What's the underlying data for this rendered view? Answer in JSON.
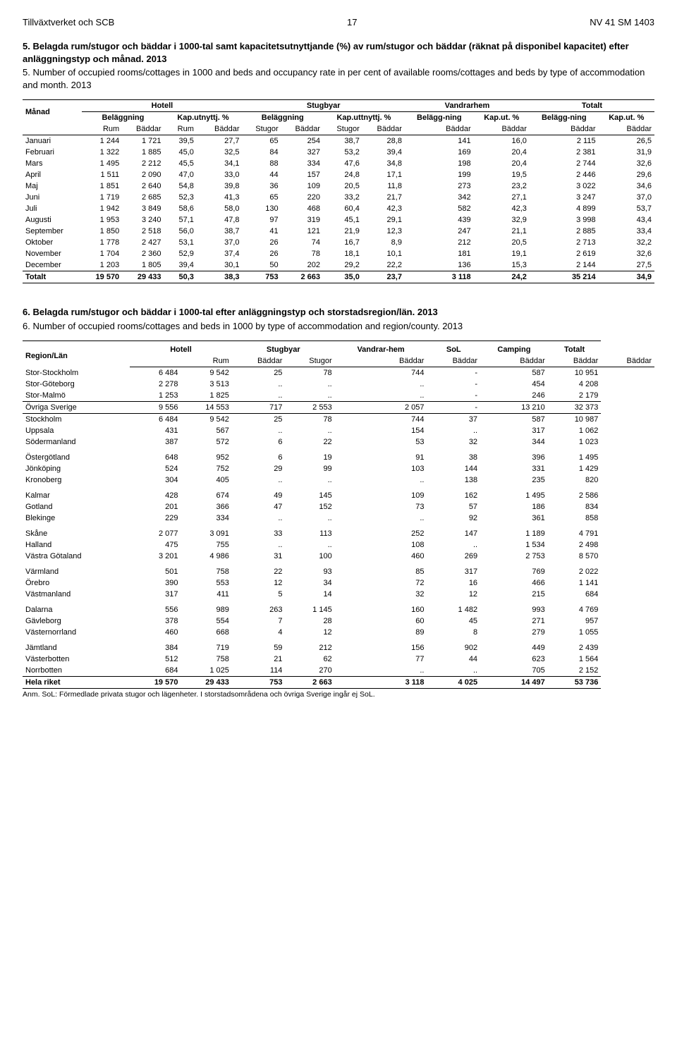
{
  "header": {
    "left": "Tillväxtverket och SCB",
    "page": "17",
    "right": "NV 41 SM 1403"
  },
  "section5": {
    "title": "5. Belagda rum/stugor och bäddar i 1000-tal samt kapacitetsutnyttjande (%) av rum/stugor och bäddar (räknat på disponibel kapacitet) efter anläggningstyp och månad. 2013",
    "sub": "5. Number of occupied rooms/cottages in 1000 and beds and occupancy rate in per cent of available rooms/cottages and beds by type of accommodation and month. 2013",
    "groups": [
      "Månad",
      "Hotell",
      "Stugbyar",
      "Vandrarhem",
      "Totalt"
    ],
    "sub1": [
      "Beläggning",
      "Kap.utnyttj. %",
      "Beläggning",
      "Kap.uttnyttj. %",
      "Belägg-ning",
      "Kap.ut. %",
      "Belägg-ning",
      "Kap.ut. %"
    ],
    "sub2": [
      "",
      "Rum",
      "Bäddar",
      "Rum",
      "Bäddar",
      "Stugor",
      "Bäddar",
      "Stugor",
      "Bäddar",
      "Bäddar",
      "Bäddar",
      "Bäddar",
      "Bäddar"
    ],
    "rows": [
      [
        "Januari",
        "1 244",
        "1 721",
        "39,5",
        "27,7",
        "65",
        "254",
        "38,7",
        "28,8",
        "141",
        "16,0",
        "2 115",
        "26,5"
      ],
      [
        "Februari",
        "1 322",
        "1 885",
        "45,0",
        "32,5",
        "84",
        "327",
        "53,2",
        "39,4",
        "169",
        "20,4",
        "2 381",
        "31,9"
      ],
      [
        "Mars",
        "1 495",
        "2 212",
        "45,5",
        "34,1",
        "88",
        "334",
        "47,6",
        "34,8",
        "198",
        "20,4",
        "2 744",
        "32,6"
      ],
      [
        "April",
        "1 511",
        "2 090",
        "47,0",
        "33,0",
        "44",
        "157",
        "24,8",
        "17,1",
        "199",
        "19,5",
        "2 446",
        "29,6"
      ],
      [
        "Maj",
        "1 851",
        "2 640",
        "54,8",
        "39,8",
        "36",
        "109",
        "20,5",
        "11,8",
        "273",
        "23,2",
        "3 022",
        "34,6"
      ],
      [
        "Juni",
        "1 719",
        "2 685",
        "52,3",
        "41,3",
        "65",
        "220",
        "33,2",
        "21,7",
        "342",
        "27,1",
        "3 247",
        "37,0"
      ],
      [
        "Juli",
        "1 942",
        "3 849",
        "58,6",
        "58,0",
        "130",
        "468",
        "60,4",
        "42,3",
        "582",
        "42,3",
        "4 899",
        "53,7"
      ],
      [
        "Augusti",
        "1 953",
        "3 240",
        "57,1",
        "47,8",
        "97",
        "319",
        "45,1",
        "29,1",
        "439",
        "32,9",
        "3 998",
        "43,4"
      ],
      [
        "September",
        "1 850",
        "2 518",
        "56,0",
        "38,7",
        "41",
        "121",
        "21,9",
        "12,3",
        "247",
        "21,1",
        "2 885",
        "33,4"
      ],
      [
        "Oktober",
        "1 778",
        "2 427",
        "53,1",
        "37,0",
        "26",
        "74",
        "16,7",
        "8,9",
        "212",
        "20,5",
        "2 713",
        "32,2"
      ],
      [
        "November",
        "1 704",
        "2 360",
        "52,9",
        "37,4",
        "26",
        "78",
        "18,1",
        "10,1",
        "181",
        "19,1",
        "2 619",
        "32,6"
      ],
      [
        "December",
        "1 203",
        "1 805",
        "39,4",
        "30,1",
        "50",
        "202",
        "29,2",
        "22,2",
        "136",
        "15,3",
        "2 144",
        "27,5"
      ]
    ],
    "total": [
      "Totalt",
      "19 570",
      "29 433",
      "50,3",
      "38,3",
      "753",
      "2 663",
      "35,0",
      "23,7",
      "3 118",
      "24,2",
      "35 214",
      "34,9"
    ]
  },
  "section6": {
    "title": "6. Belagda rum/stugor och bäddar i 1000-tal efter anläggningstyp och storstadsregion/län. 2013",
    "sub": "6. Number of occupied rooms/cottages and beds in 1000 by type of accommodation and region/county. 2013",
    "groups": [
      "Region/Län",
      "Hotell",
      "Stugbyar",
      "Vandrar-hem",
      "SoL",
      "Camping",
      "Totalt"
    ],
    "sub2": [
      "",
      "Rum",
      "Bäddar",
      "Stugor",
      "Bäddar",
      "Bäddar",
      "Bäddar",
      "Bäddar",
      "Bäddar"
    ],
    "blocks": [
      [
        [
          "Stor-Stockholm",
          "6 484",
          "9 542",
          "25",
          "78",
          "744",
          "-",
          "587",
          "10 951"
        ],
        [
          "Stor-Göteborg",
          "2 278",
          "3 513",
          "..",
          "..",
          "..",
          "-",
          "454",
          "4 208"
        ],
        [
          "Stor-Malmö",
          "1 253",
          "1 825",
          "..",
          "..",
          "..",
          "-",
          "246",
          "2 179"
        ]
      ],
      [
        [
          "Övriga Sverige",
          "9 556",
          "14 553",
          "717",
          "2 553",
          "2 057",
          "-",
          "13 210",
          "32 373"
        ]
      ],
      [
        [
          "Stockholm",
          "6 484",
          "9 542",
          "25",
          "78",
          "744",
          "37",
          "587",
          "10 987"
        ],
        [
          "Uppsala",
          "431",
          "567",
          "..",
          "..",
          "154",
          "..",
          "317",
          "1 062"
        ],
        [
          "Södermanland",
          "387",
          "572",
          "6",
          "22",
          "53",
          "32",
          "344",
          "1 023"
        ]
      ],
      [
        [
          "Östergötland",
          "648",
          "952",
          "6",
          "19",
          "91",
          "38",
          "396",
          "1 495"
        ],
        [
          "Jönköping",
          "524",
          "752",
          "29",
          "99",
          "103",
          "144",
          "331",
          "1 429"
        ],
        [
          "Kronoberg",
          "304",
          "405",
          "..",
          "..",
          "..",
          "138",
          "235",
          "820"
        ]
      ],
      [
        [
          "Kalmar",
          "428",
          "674",
          "49",
          "145",
          "109",
          "162",
          "1 495",
          "2 586"
        ],
        [
          "Gotland",
          "201",
          "366",
          "47",
          "152",
          "73",
          "57",
          "186",
          "834"
        ],
        [
          "Blekinge",
          "229",
          "334",
          "..",
          "..",
          "..",
          "92",
          "361",
          "858"
        ]
      ],
      [
        [
          "Skåne",
          "2 077",
          "3 091",
          "33",
          "113",
          "252",
          "147",
          "1 189",
          "4 791"
        ],
        [
          "Halland",
          "475",
          "755",
          "..",
          "..",
          "108",
          "..",
          "1 534",
          "2 498"
        ],
        [
          "Västra Götaland",
          "3 201",
          "4 986",
          "31",
          "100",
          "460",
          "269",
          "2 753",
          "8 570"
        ]
      ],
      [
        [
          "Värmland",
          "501",
          "758",
          "22",
          "93",
          "85",
          "317",
          "769",
          "2 022"
        ],
        [
          "Örebro",
          "390",
          "553",
          "12",
          "34",
          "72",
          "16",
          "466",
          "1 141"
        ],
        [
          "Västmanland",
          "317",
          "411",
          "5",
          "14",
          "32",
          "12",
          "215",
          "684"
        ]
      ],
      [
        [
          "Dalarna",
          "556",
          "989",
          "263",
          "1 145",
          "160",
          "1 482",
          "993",
          "4 769"
        ],
        [
          "Gävleborg",
          "378",
          "554",
          "7",
          "28",
          "60",
          "45",
          "271",
          "957"
        ],
        [
          "Västernorrland",
          "460",
          "668",
          "4",
          "12",
          "89",
          "8",
          "279",
          "1 055"
        ]
      ],
      [
        [
          "Jämtland",
          "384",
          "719",
          "59",
          "212",
          "156",
          "902",
          "449",
          "2 439"
        ],
        [
          "Västerbotten",
          "512",
          "758",
          "21",
          "62",
          "77",
          "44",
          "623",
          "1 564"
        ],
        [
          "Norrbotten",
          "684",
          "1 025",
          "114",
          "270",
          "..",
          "..",
          "705",
          "2 152"
        ]
      ]
    ],
    "hela": [
      "Hela riket",
      "19 570",
      "29 433",
      "753",
      "2 663",
      "3 118",
      "4 025",
      "14 497",
      "53 736"
    ],
    "footnote": "Anm. SoL: Förmedlade privata stugor och lägenheter. I storstadsområdena och övriga Sverige ingår ej SoL."
  }
}
